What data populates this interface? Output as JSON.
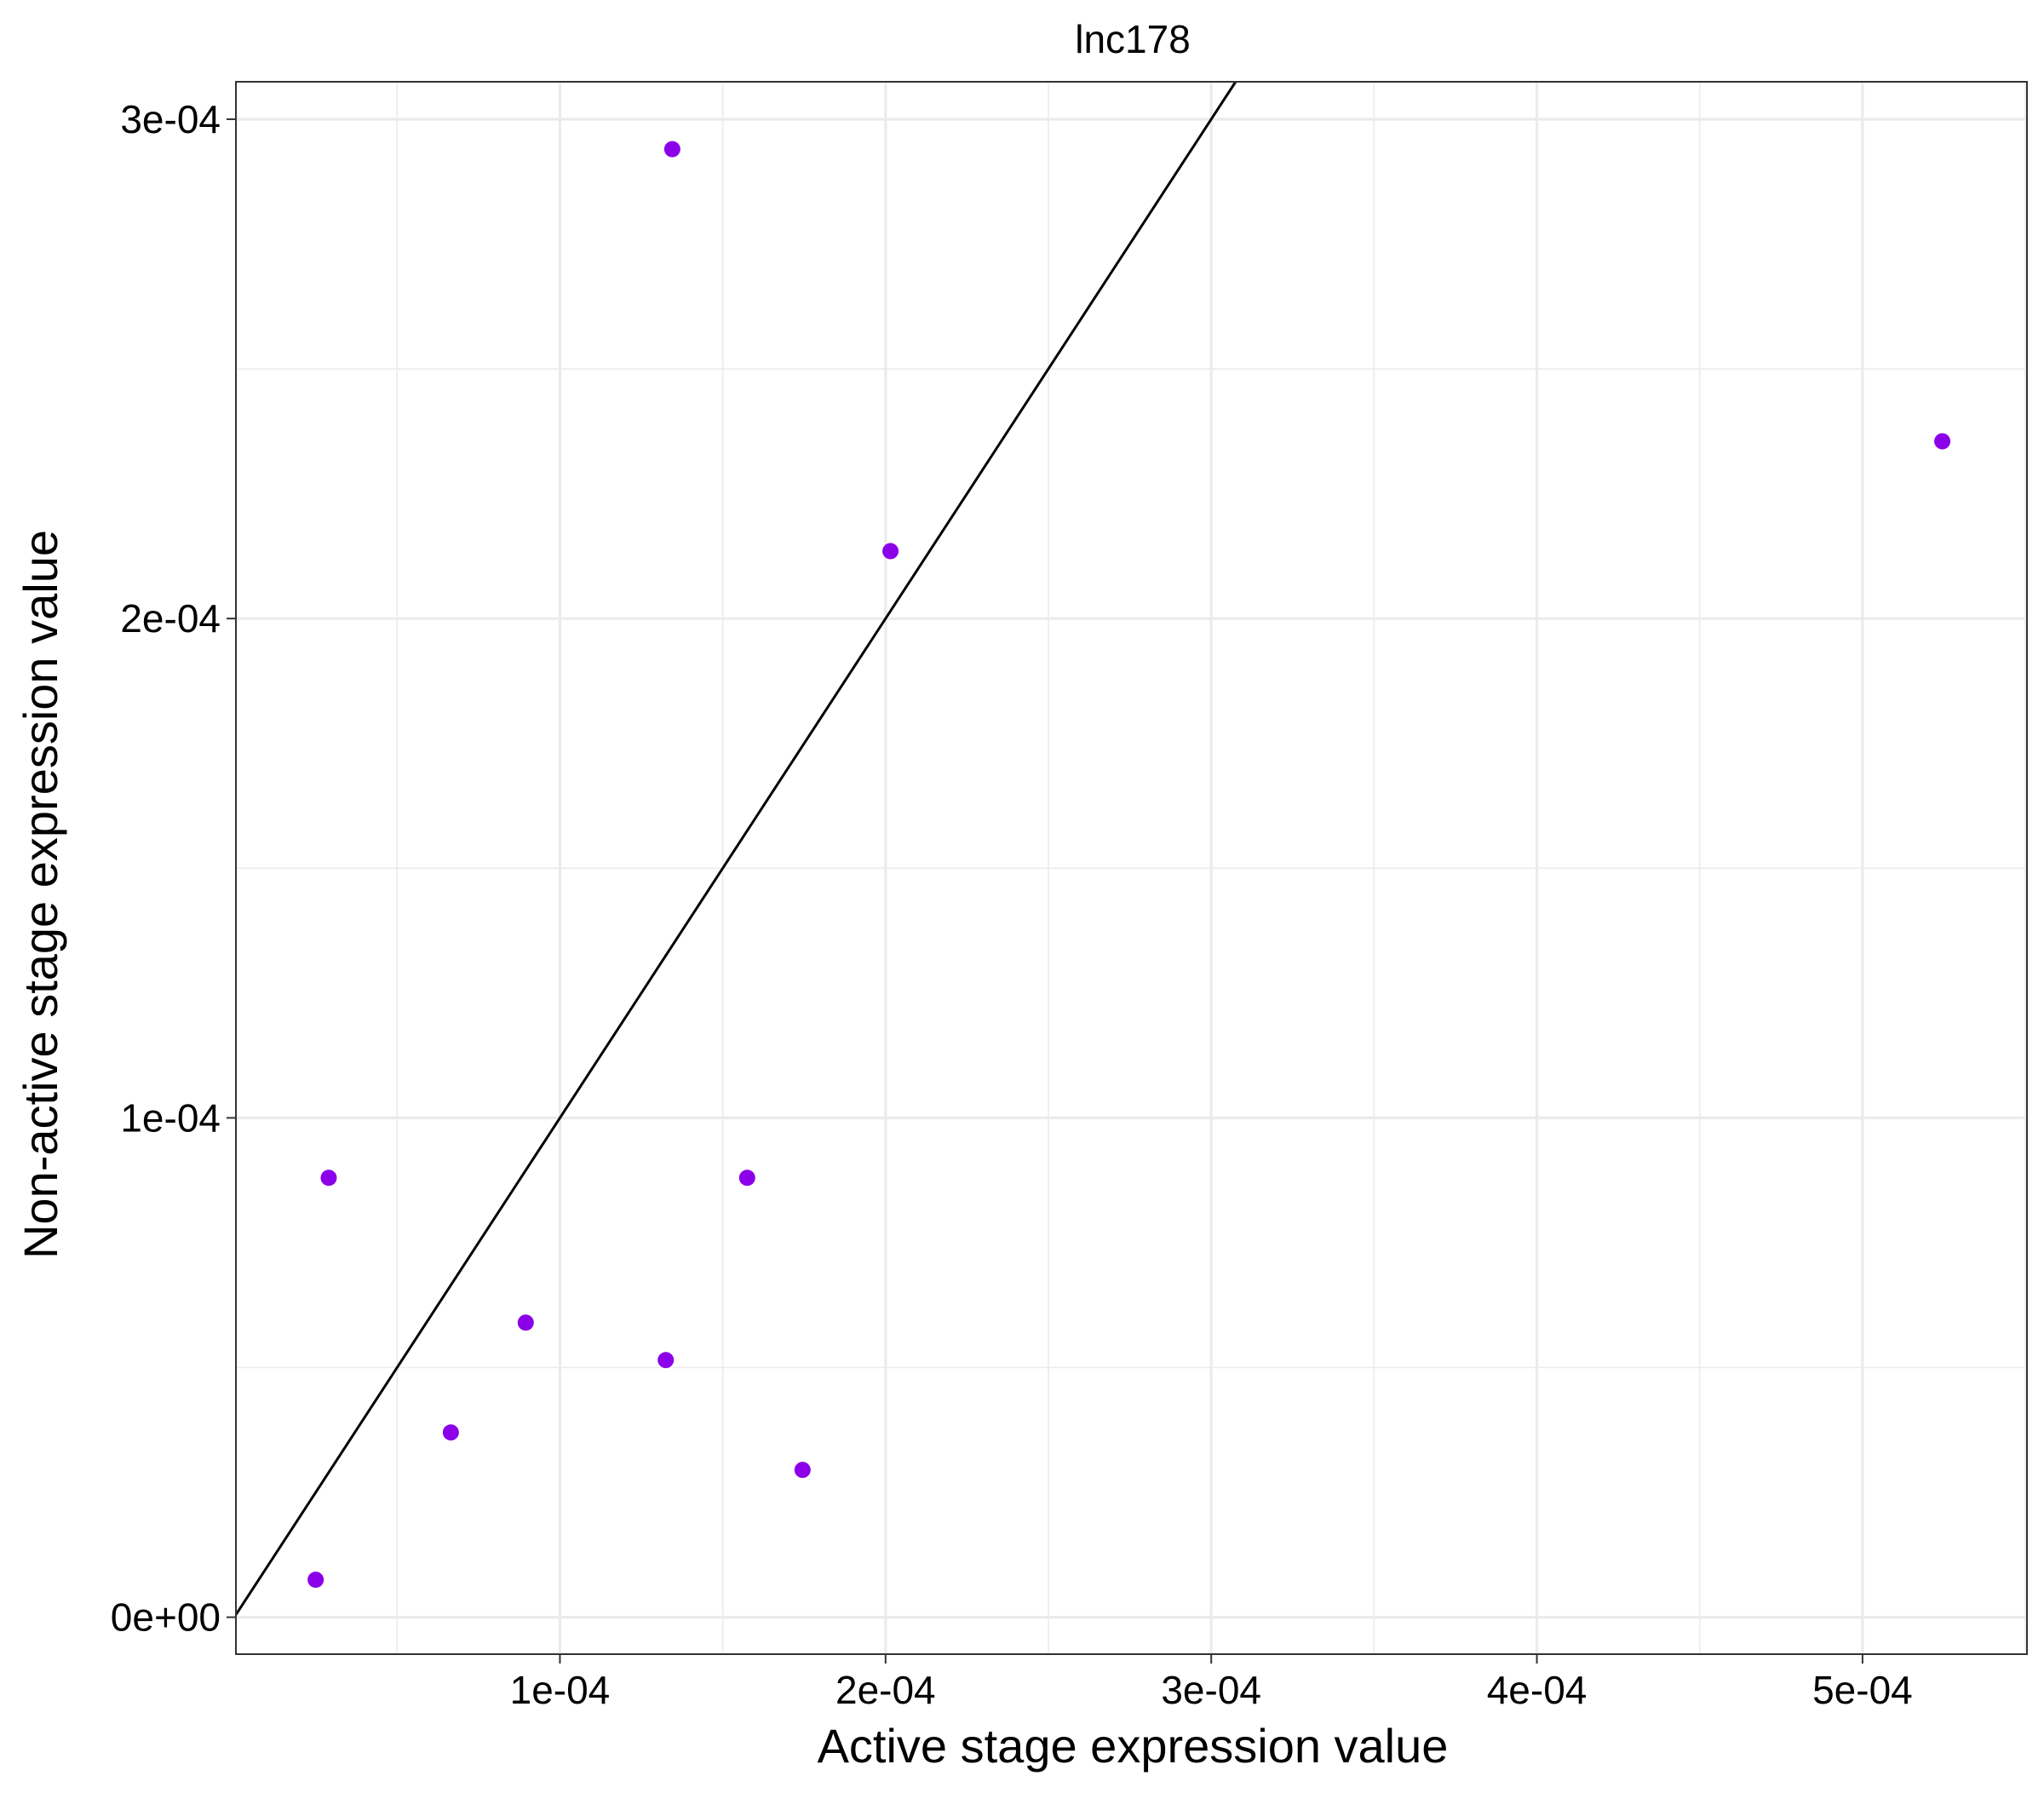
{
  "chart_data": {
    "type": "scatter",
    "title": "lnc178",
    "xlabel": "Active stage expression value",
    "ylabel": "Non-active stage expression value",
    "xlim": [
      5e-07,
      0.0005505
    ],
    "ylim": [
      -7.4e-06,
      0.0003075
    ],
    "x_ticks": [
      0.0001,
      0.0002,
      0.0003,
      0.0004,
      0.0005
    ],
    "x_tick_labels": [
      "1e-04",
      "2e-04",
      "3e-04",
      "4e-04",
      "5e-04"
    ],
    "y_ticks": [
      0,
      0.0001,
      0.0002,
      0.0003
    ],
    "y_tick_labels": [
      "0e+00",
      "1e-04",
      "2e-04",
      "3e-04"
    ],
    "grid": true,
    "points": [
      {
        "x": 2.5e-05,
        "y": 7.5e-06
      },
      {
        "x": 2.9e-05,
        "y": 8.8e-05
      },
      {
        "x": 6.65e-05,
        "y": 3.7e-05
      },
      {
        "x": 8.95e-05,
        "y": 5.9e-05
      },
      {
        "x": 0.0001325,
        "y": 5.15e-05
      },
      {
        "x": 0.0001345,
        "y": 0.000294
      },
      {
        "x": 0.0001575,
        "y": 8.8e-05
      },
      {
        "x": 0.0001745,
        "y": 2.95e-05
      },
      {
        "x": 0.0002015,
        "y": 0.0002135
      },
      {
        "x": 0.0005245,
        "y": 0.0002355
      }
    ],
    "reference_line": {
      "slope": 1,
      "intercept": 0
    },
    "point_color": "#8B00E8",
    "line_color": "#000000",
    "grid_color": "#EBEBEB",
    "panel_border_color": "#333333"
  }
}
